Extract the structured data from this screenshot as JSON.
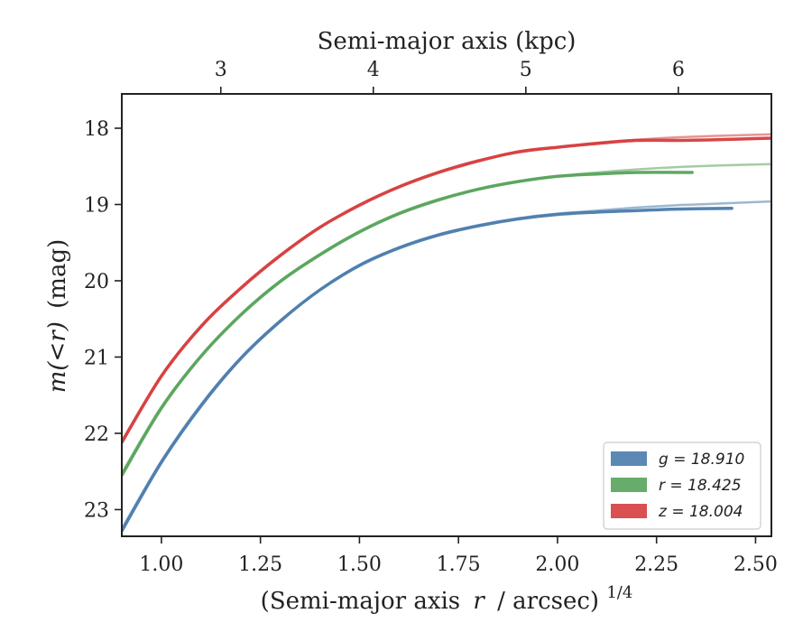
{
  "chart_data": {
    "type": "line",
    "xlabel_bottom": "(Semi-major axis",
    "xlabel_bottom_var": "r",
    "xlabel_bottom_tail": "/ arcsec)",
    "xlabel_bottom_exp": "1/4",
    "xlabel_top": "Semi-major axis (kpc)",
    "ylabel_var": "m(<r)",
    "ylabel_unit": "(mag)",
    "xlim": [
      0.9,
      2.54
    ],
    "ylim": [
      23.35,
      17.55
    ],
    "y_inverted": true,
    "x_ticks": [
      "1.00",
      "1.25",
      "1.50",
      "1.75",
      "2.00",
      "2.25",
      "2.50"
    ],
    "x_tick_values": [
      1.0,
      1.25,
      1.5,
      1.75,
      2.0,
      2.25,
      2.5
    ],
    "y_ticks": [
      "18",
      "19",
      "20",
      "21",
      "22",
      "23"
    ],
    "y_tick_values": [
      18,
      19,
      20,
      21,
      22,
      23
    ],
    "top_ticks": [
      "3",
      "4",
      "5",
      "6"
    ],
    "top_tick_x_values": [
      1.15,
      1.535,
      1.92,
      2.305
    ],
    "legend_position": "lower-right",
    "grid": false,
    "series": [
      {
        "name": "g = 18.910",
        "legend_label": "g = 18.910",
        "color": "#4a7bac",
        "x": [
          0.9,
          1.0,
          1.1,
          1.2,
          1.3,
          1.4,
          1.5,
          1.6,
          1.7,
          1.8,
          1.9,
          2.0,
          2.1,
          2.2,
          2.3,
          2.44
        ],
        "y": [
          23.28,
          22.38,
          21.64,
          21.02,
          20.53,
          20.12,
          19.8,
          19.57,
          19.4,
          19.28,
          19.19,
          19.13,
          19.1,
          19.08,
          19.06,
          19.05
        ],
        "model_x": [
          0.9,
          1.0,
          1.1,
          1.2,
          1.3,
          1.4,
          1.5,
          1.6,
          1.7,
          1.8,
          1.9,
          2.0,
          2.1,
          2.2,
          2.3,
          2.4,
          2.54
        ],
        "model_y": [
          23.25,
          22.36,
          21.62,
          21.01,
          20.52,
          20.12,
          19.79,
          19.56,
          19.39,
          19.27,
          19.18,
          19.12,
          19.08,
          19.04,
          19.01,
          18.99,
          18.96
        ]
      },
      {
        "name": "r = 18.425",
        "legend_label": "r = 18.425",
        "color": "#56a35a",
        "x": [
          0.9,
          1.0,
          1.1,
          1.2,
          1.3,
          1.4,
          1.5,
          1.6,
          1.7,
          1.8,
          1.9,
          2.0,
          2.1,
          2.2,
          2.34
        ],
        "y": [
          22.55,
          21.67,
          20.99,
          20.45,
          20.01,
          19.66,
          19.36,
          19.12,
          18.94,
          18.8,
          18.7,
          18.63,
          18.6,
          18.58,
          18.58
        ],
        "model_x": [
          0.9,
          1.0,
          1.1,
          1.2,
          1.3,
          1.4,
          1.5,
          1.6,
          1.7,
          1.8,
          1.9,
          2.0,
          2.1,
          2.2,
          2.3,
          2.4,
          2.54
        ],
        "model_y": [
          22.52,
          21.65,
          20.98,
          20.44,
          20.0,
          19.65,
          19.35,
          19.11,
          18.93,
          18.8,
          18.7,
          18.63,
          18.58,
          18.54,
          18.51,
          18.49,
          18.47
        ]
      },
      {
        "name": "z = 18.004",
        "legend_label": "z = 18.004",
        "color": "#d63c3c",
        "x": [
          0.9,
          1.0,
          1.1,
          1.2,
          1.3,
          1.4,
          1.5,
          1.6,
          1.7,
          1.8,
          1.9,
          2.0,
          2.1,
          2.2,
          2.3,
          2.4,
          2.54
        ],
        "y": [
          22.12,
          21.25,
          20.6,
          20.1,
          19.67,
          19.3,
          19.01,
          18.77,
          18.58,
          18.43,
          18.31,
          18.25,
          18.2,
          18.16,
          18.16,
          18.15,
          18.13
        ],
        "model_x": [
          0.9,
          1.0,
          1.1,
          1.2,
          1.3,
          1.4,
          1.5,
          1.6,
          1.7,
          1.8,
          1.9,
          2.0,
          2.1,
          2.2,
          2.3,
          2.4,
          2.54
        ],
        "model_y": [
          22.1,
          21.24,
          20.59,
          20.09,
          19.66,
          19.3,
          19.0,
          18.76,
          18.57,
          18.42,
          18.32,
          18.25,
          18.19,
          18.15,
          18.12,
          18.1,
          18.08
        ]
      }
    ]
  }
}
